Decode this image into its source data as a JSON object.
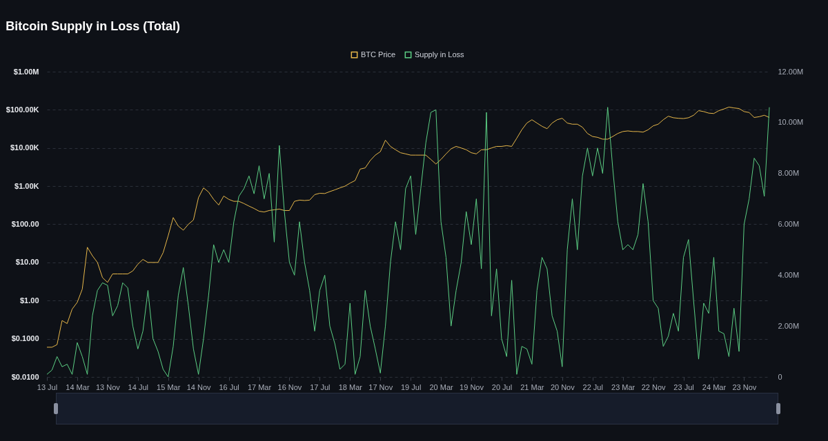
{
  "chart_data": {
    "type": "line",
    "title": "Bitcoin Supply in Loss (Total)",
    "categories": [
      "13 Jul",
      null,
      null,
      null,
      null,
      null,
      "14 Mar",
      null,
      null,
      null,
      null,
      null,
      "13 Nov",
      null,
      null,
      null,
      null,
      null,
      "14 Jul",
      null,
      null,
      null,
      null,
      null,
      "15 Mar",
      null,
      null,
      null,
      null,
      null,
      "14 Nov",
      null,
      null,
      null,
      null,
      null,
      "16 Jul",
      null,
      null,
      null,
      null,
      null,
      "17 Mar",
      null,
      null,
      null,
      null,
      null,
      "16 Nov",
      null,
      null,
      null,
      null,
      null,
      "17 Jul",
      null,
      null,
      null,
      null,
      null,
      "18 Mar",
      null,
      null,
      null,
      null,
      null,
      "17 Nov",
      null,
      null,
      null,
      null,
      null,
      "19 Jul",
      null,
      null,
      null,
      null,
      null,
      "20 Mar",
      null,
      null,
      null,
      null,
      null,
      "19 Nov",
      null,
      null,
      null,
      null,
      null,
      "20 Jul",
      null,
      null,
      null,
      null,
      null,
      "21 Mar",
      null,
      null,
      null,
      null,
      null,
      "20 Nov",
      null,
      null,
      null,
      null,
      null,
      "22 Jul",
      null,
      null,
      null,
      null,
      null,
      "23 Mar",
      null,
      null,
      null,
      null,
      null,
      "22 Nov",
      null,
      null,
      null,
      null,
      null,
      "23 Jul",
      null,
      null,
      null,
      null,
      null,
      "24 Mar",
      null,
      null,
      null,
      null,
      null,
      "23 Nov",
      null,
      null,
      null,
      null,
      null
    ],
    "series": [
      {
        "name": "BTC Price",
        "color": "#e8b84a",
        "values": [
          0.06,
          0.06,
          0.07,
          0.3,
          0.25,
          0.6,
          0.9,
          2,
          25,
          15,
          10,
          4,
          3,
          5,
          5,
          5,
          5,
          6,
          9,
          12,
          10,
          10,
          10,
          18,
          50,
          150,
          90,
          70,
          100,
          130,
          500,
          900,
          700,
          450,
          320,
          550,
          450,
          400,
          400,
          350,
          300,
          260,
          220,
          210,
          230,
          240,
          250,
          230,
          230,
          400,
          430,
          420,
          430,
          600,
          650,
          640,
          720,
          800,
          900,
          1000,
          1200,
          1400,
          2800,
          3000,
          4700,
          6500,
          8000,
          16000,
          11000,
          9000,
          7500,
          7000,
          6500,
          6500,
          6500,
          6500,
          5000,
          3800,
          5000,
          7000,
          9500,
          11000,
          10000,
          9000,
          7500,
          7000,
          9000,
          9000,
          10000,
          11000,
          11000,
          11500,
          11000,
          18000,
          30000,
          45000,
          55000,
          45000,
          37000,
          32000,
          45000,
          55000,
          60000,
          45000,
          42000,
          42000,
          35000,
          24000,
          20000,
          19000,
          17000,
          17000,
          20000,
          24000,
          27000,
          28000,
          27000,
          27000,
          26000,
          30000,
          38000,
          42000,
          55000,
          68000,
          62000,
          60000,
          59000,
          62000,
          72000,
          95000,
          90000,
          82000,
          80000,
          95000,
          105000,
          118000,
          112000,
          108000,
          90000,
          85000,
          63000,
          66000,
          72000,
          63000
        ]
      },
      {
        "name": "Supply in Loss",
        "color": "#5ccf84",
        "axis": "y2",
        "values": [
          0.1,
          0.27,
          0.8,
          0.4,
          0.5,
          0.1,
          1.35,
          0.8,
          0.1,
          2.4,
          3.4,
          3.7,
          3.6,
          2.4,
          2.8,
          3.7,
          3.5,
          2,
          1.1,
          1.8,
          3.4,
          1.5,
          1,
          0.3,
          0,
          1.2,
          3.2,
          4.3,
          2.8,
          1.1,
          0.1,
          1.5,
          3.2,
          5.2,
          4.5,
          5,
          4.5,
          6.1,
          7.1,
          7.4,
          7.9,
          7.2,
          8.3,
          7,
          8,
          5.3,
          9.1,
          6.5,
          4.5,
          4,
          6.1,
          4.5,
          3.4,
          1.8,
          3.4,
          4,
          2,
          1.3,
          0.3,
          0.5,
          2.9,
          0.1,
          0.8,
          3.4,
          2,
          1.1,
          0.15,
          2,
          4.5,
          6.1,
          5,
          7.4,
          7.9,
          5.6,
          7.4,
          9.2,
          10.4,
          10.5,
          6.1,
          4.7,
          2,
          3.4,
          4.5,
          6.5,
          5.2,
          7,
          4.25,
          10.4,
          2.4,
          4.25,
          1.5,
          0.8,
          3.8,
          0.1,
          1.2,
          1.1,
          0.5,
          3.4,
          4.7,
          4.25,
          2.4,
          1.8,
          0.4,
          5,
          7,
          5,
          7.9,
          9,
          7.9,
          9,
          8,
          10.6,
          8.2,
          6.1,
          5,
          5.2,
          5,
          5.6,
          7.6,
          6.1,
          3,
          2.7,
          1.2,
          1.6,
          2.5,
          1.8,
          4.7,
          5.4,
          3,
          0.7,
          2.9,
          2.5,
          4.7,
          1.8,
          1.7,
          0.8,
          2.7,
          1,
          6,
          7,
          8.6,
          8.3,
          7.1,
          10.6
        ]
      }
    ],
    "log": "y",
    "ylim": [
      0.01,
      1000000
    ],
    "yticks": [
      {
        "value": 0.01,
        "label": "$0.0100"
      },
      {
        "value": 0.1,
        "label": "$0.1000"
      },
      {
        "value": 1,
        "label": "$1.00"
      },
      {
        "value": 10,
        "label": "$10.00"
      },
      {
        "value": 100,
        "label": "$100.00"
      },
      {
        "value": 1000,
        "label": "$1.00K"
      },
      {
        "value": 10000,
        "label": "$10.00K"
      },
      {
        "value": 100000,
        "label": "$100.00K"
      },
      {
        "value": 1000000,
        "label": "$1.00M"
      }
    ],
    "y2lim": [
      0,
      12
    ],
    "y2ticks": [
      0,
      {
        "value": 2,
        "label": "2.00M"
      },
      {
        "value": 4,
        "label": "4.00M"
      },
      {
        "value": 6,
        "label": "6.00M"
      },
      {
        "value": 8,
        "label": "8.00M"
      },
      {
        "value": 10,
        "label": "10.00M"
      },
      {
        "value": 12,
        "label": "12.00M"
      }
    ],
    "grid": "y",
    "legend": "top"
  }
}
